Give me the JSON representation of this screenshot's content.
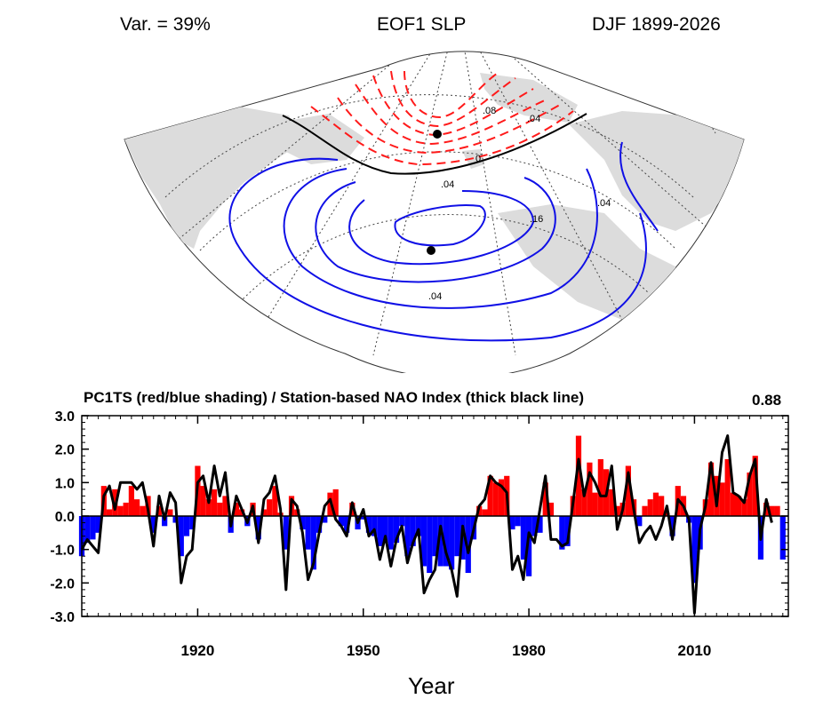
{
  "header": {
    "variance": "Var. = 39%",
    "title": "EOF1 SLP",
    "season": "DJF 1899-2026"
  },
  "map": {
    "contour_labels": [
      ".08",
      ".04",
      "0",
      ".04",
      ".16",
      ".04",
      ".04"
    ],
    "colors": {
      "positive": "#ff1a1a",
      "negative": "#1010e6",
      "zero": "#000000",
      "land": "#dcdcdc"
    }
  },
  "timeseries": {
    "title": "PC1TS (red/blue shading) / Station-based NAO Index (thick black line)",
    "correlation": "0.88",
    "xlabel": "Year"
  },
  "chart_data": {
    "type": "area",
    "title": "PC1TS (red/blue shading) / Station-based NAO Index (thick black line)",
    "xlabel": "Year",
    "ylabel": "",
    "xlim": [
      1899,
      2027
    ],
    "ylim": [
      -3.0,
      3.0
    ],
    "x_ticks": [
      1920,
      1950,
      1980,
      2010
    ],
    "y_ticks": [
      "3.0",
      "2.0",
      "1.0",
      "0.0",
      "-1.0",
      "-2.0",
      "-3.0"
    ],
    "annotation": "0.88",
    "colors": {
      "positive": "#ff0000",
      "negative": "#0000ff",
      "line": "#000000"
    },
    "series": [
      {
        "name": "PC1TS",
        "x": [
          1899,
          1900,
          1901,
          1902,
          1903,
          1904,
          1905,
          1906,
          1907,
          1908,
          1909,
          1910,
          1911,
          1912,
          1913,
          1914,
          1915,
          1916,
          1917,
          1918,
          1919,
          1920,
          1921,
          1922,
          1923,
          1924,
          1925,
          1926,
          1927,
          1928,
          1929,
          1930,
          1931,
          1932,
          1933,
          1934,
          1935,
          1936,
          1937,
          1938,
          1939,
          1940,
          1941,
          1942,
          1943,
          1944,
          1945,
          1946,
          1947,
          1948,
          1949,
          1950,
          1951,
          1952,
          1953,
          1954,
          1955,
          1956,
          1957,
          1958,
          1959,
          1960,
          1961,
          1962,
          1963,
          1964,
          1965,
          1966,
          1967,
          1968,
          1969,
          1970,
          1971,
          1972,
          1973,
          1974,
          1975,
          1976,
          1977,
          1978,
          1979,
          1980,
          1981,
          1982,
          1983,
          1984,
          1985,
          1986,
          1987,
          1988,
          1989,
          1990,
          1991,
          1992,
          1993,
          1994,
          1995,
          1996,
          1997,
          1998,
          1999,
          2000,
          2001,
          2002,
          2003,
          2004,
          2005,
          2006,
          2007,
          2008,
          2009,
          2010,
          2011,
          2012,
          2013,
          2014,
          2015,
          2016,
          2017,
          2018,
          2019,
          2020,
          2021,
          2022,
          2023,
          2024,
          2025,
          2026
        ],
        "values": [
          -1.2,
          -0.8,
          -0.7,
          -0.5,
          0.9,
          0.2,
          0.8,
          0.3,
          0.4,
          0.9,
          0.5,
          0.3,
          0.6,
          -0.5,
          0.3,
          -0.3,
          0.2,
          -0.2,
          -1.2,
          -0.6,
          -0.4,
          1.5,
          0.9,
          0.5,
          0.8,
          0.4,
          0.6,
          -0.5,
          0.4,
          0.2,
          -0.3,
          0.4,
          -0.7,
          0.2,
          0.5,
          0.9,
          0.1,
          -1.0,
          0.6,
          0.2,
          -0.4,
          -1.0,
          -1.6,
          -0.5,
          -0.2,
          0.7,
          0.8,
          -0.3,
          -0.5,
          0.4,
          -0.4,
          -0.1,
          -0.5,
          -0.6,
          -0.9,
          -0.8,
          -1.0,
          -0.8,
          -0.3,
          -1.2,
          -0.9,
          -0.6,
          -1.5,
          -1.7,
          -1.2,
          -1.5,
          -1.5,
          -1.6,
          -1.2,
          -1.3,
          -1.7,
          -0.7,
          0.3,
          0.2,
          1.2,
          1.0,
          1.1,
          1.2,
          -0.4,
          -0.3,
          -1.3,
          -1.8,
          -0.6,
          -0.5,
          1.0,
          0.4,
          0.0,
          -1.0,
          -0.9,
          0.6,
          2.4,
          0.8,
          1.6,
          0.7,
          1.7,
          1.4,
          0.8,
          0.3,
          0.4,
          1.5,
          0.5,
          -0.3,
          0.3,
          0.5,
          0.7,
          0.6,
          0.1,
          -0.6,
          0.9,
          0.6,
          -0.2,
          -2.0,
          -1.0,
          0.5,
          1.6,
          1.2,
          1.0,
          1.7,
          0.7,
          0.6,
          0.5,
          1.3,
          1.8,
          -1.3,
          0.4,
          0.3,
          0.3,
          -1.3
        ]
      },
      {
        "name": "Station-based NAO Index",
        "x": [
          1899,
          1900,
          1901,
          1902,
          1903,
          1904,
          1905,
          1906,
          1907,
          1908,
          1909,
          1910,
          1911,
          1912,
          1913,
          1914,
          1915,
          1916,
          1917,
          1918,
          1919,
          1920,
          1921,
          1922,
          1923,
          1924,
          1925,
          1926,
          1927,
          1928,
          1929,
          1930,
          1931,
          1932,
          1933,
          1934,
          1935,
          1936,
          1937,
          1938,
          1939,
          1940,
          1941,
          1942,
          1943,
          1944,
          1945,
          1946,
          1947,
          1948,
          1949,
          1950,
          1951,
          1952,
          1953,
          1954,
          1955,
          1956,
          1957,
          1958,
          1959,
          1960,
          1961,
          1962,
          1963,
          1964,
          1965,
          1966,
          1967,
          1968,
          1969,
          1970,
          1971,
          1972,
          1973,
          1974,
          1975,
          1976,
          1977,
          1978,
          1979,
          1980,
          1981,
          1982,
          1983,
          1984,
          1985,
          1986,
          1987,
          1988,
          1989,
          1990,
          1991,
          1992,
          1993,
          1994,
          1995,
          1996,
          1997,
          1998,
          1999,
          2000,
          2001,
          2002,
          2003,
          2004,
          2005,
          2006,
          2007,
          2008,
          2009,
          2010,
          2011,
          2012,
          2013,
          2014,
          2015,
          2016,
          2017,
          2018,
          2019,
          2020,
          2021,
          2022,
          2023,
          2024
        ],
        "values": [
          -1.0,
          -0.7,
          -0.9,
          -1.1,
          0.6,
          0.9,
          0.2,
          1.0,
          1.0,
          1.0,
          0.8,
          1.0,
          0.2,
          -0.9,
          0.6,
          -0.1,
          0.7,
          0.4,
          -2.0,
          -1.2,
          -1.0,
          1.0,
          1.2,
          0.4,
          1.5,
          0.6,
          1.3,
          -0.3,
          0.6,
          0.2,
          -0.2,
          0.3,
          -0.8,
          0.5,
          0.7,
          1.2,
          0.2,
          -2.2,
          0.5,
          0.3,
          -0.5,
          -1.9,
          -1.4,
          -0.5,
          0.3,
          0.5,
          -0.1,
          -0.3,
          -0.6,
          0.4,
          -0.2,
          0.2,
          -0.6,
          -0.4,
          -1.3,
          -0.6,
          -1.5,
          -0.7,
          -0.3,
          -1.4,
          -0.8,
          -0.4,
          -2.3,
          -1.9,
          -1.6,
          -0.3,
          -1.1,
          -1.6,
          -2.4,
          -0.3,
          -1.1,
          -0.4,
          0.3,
          0.5,
          1.2,
          1.0,
          0.9,
          0.7,
          -1.6,
          -1.2,
          -1.9,
          -0.5,
          -0.8,
          0.2,
          1.2,
          -0.7,
          -0.7,
          -0.9,
          -0.8,
          0.4,
          1.7,
          0.6,
          1.3,
          1.0,
          0.6,
          0.6,
          1.5,
          -0.4,
          0.2,
          1.3,
          0.2,
          -0.8,
          -0.5,
          -0.3,
          -0.7,
          -0.3,
          0.3,
          -0.7,
          0.5,
          0.3,
          -0.1,
          -2.9,
          -0.4,
          0.3,
          1.6,
          0.3,
          1.9,
          2.4,
          0.7,
          0.6,
          0.4,
          1.2,
          1.7,
          -0.7,
          0.5,
          -0.2
        ]
      }
    ]
  }
}
